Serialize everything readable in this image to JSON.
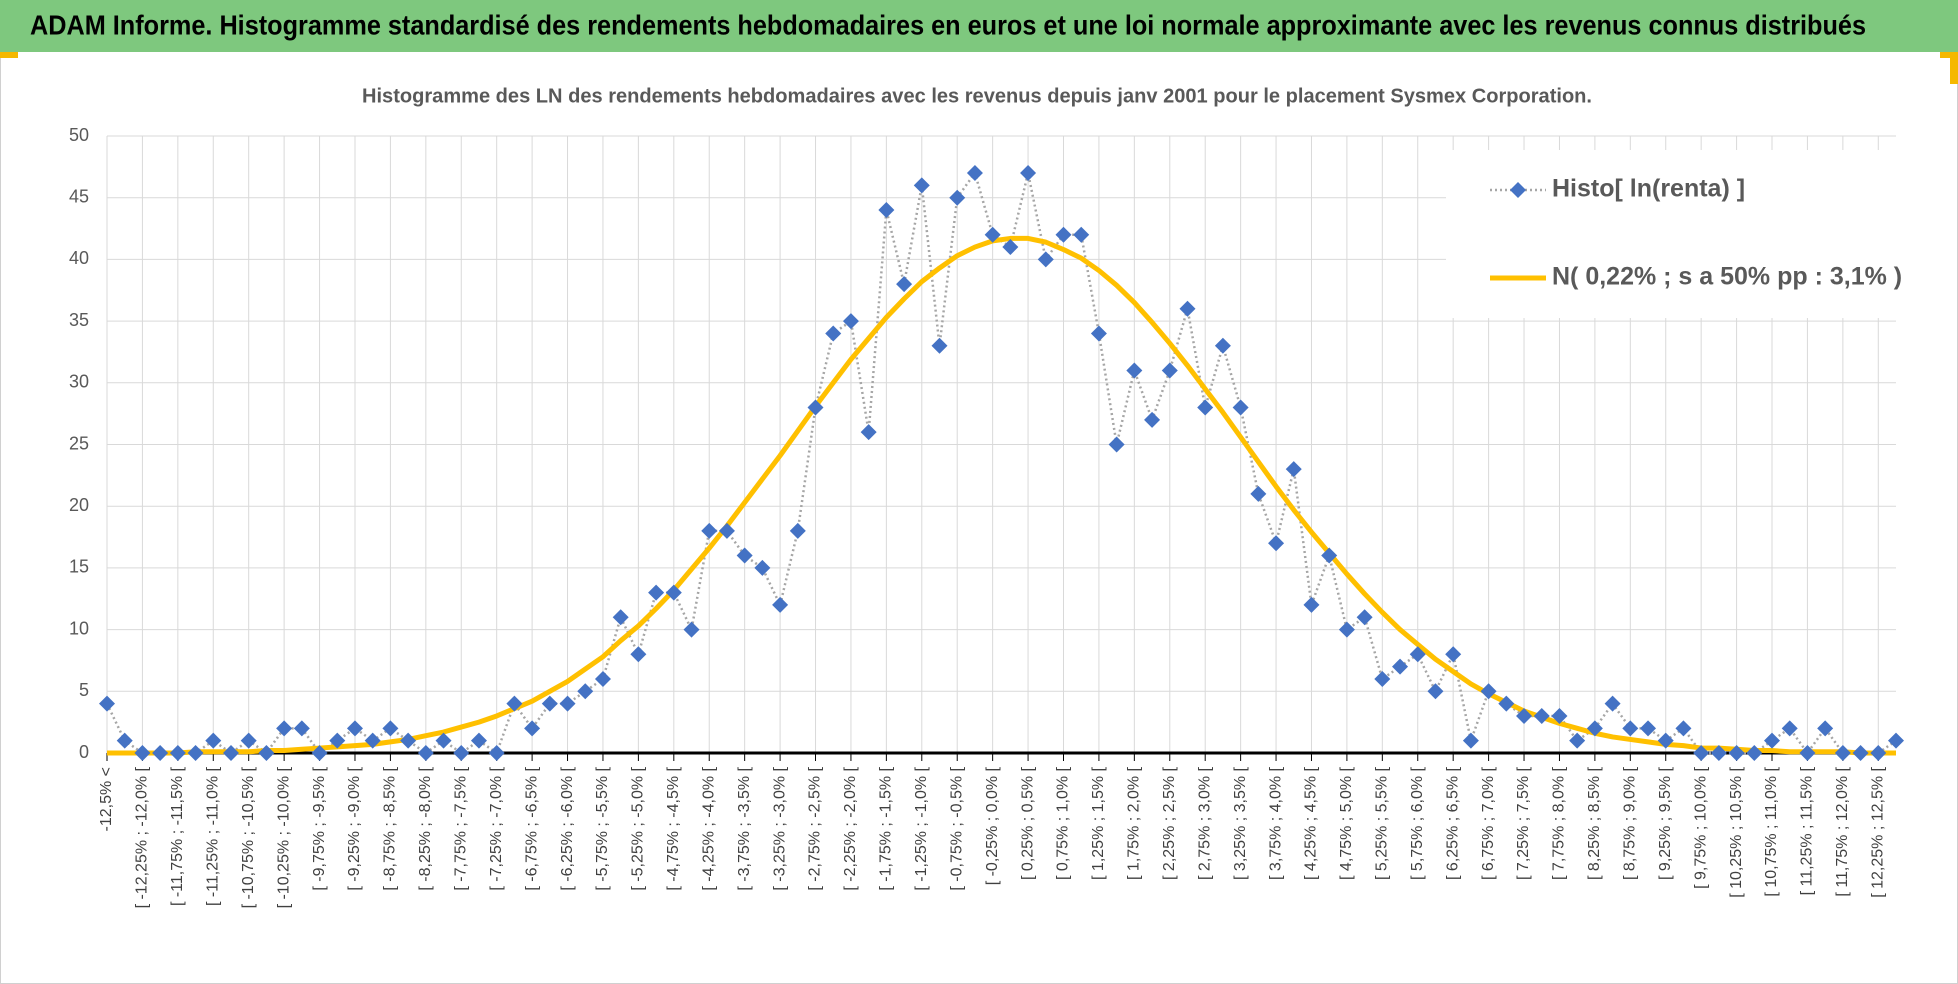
{
  "header": {
    "title": "ADAM Informe. Histogramme standardisé des rendements hebdomadaires en euros et une loi normale approximante avec les revenus connus distribués"
  },
  "chart_data": {
    "type": "line",
    "title": "Histogramme des LN des rendements hebdomadaires avec les revenus depuis janv 2001 pour le placement Sysmex Corporation.",
    "categories": [
      "-12,5% <",
      null,
      "[ -12,25% ; -12,0% [",
      null,
      "[ -11,75% ; -11,5% [",
      null,
      "[ -11,25% ; -11,0% [",
      null,
      "[ -10,75% ; -10,5% [",
      null,
      "[ -10,25% ; -10,0% [",
      null,
      "[ -9,75% ; -9,5% [",
      null,
      "[ -9,25% ; -9,0% [",
      null,
      "[ -8,75% ; -8,5% [",
      null,
      "[ -8,25% ; -8,0% [",
      null,
      "[ -7,75% ; -7,5% [",
      null,
      "[ -7,25% ; -7,0% [",
      null,
      "[ -6,75% ; -6,5% [",
      null,
      "[ -6,25% ; -6,0% [",
      null,
      "[ -5,75% ; -5,5% [",
      null,
      "[ -5,25% ; -5,0% [",
      null,
      "[ -4,75% ; -4,5% [",
      null,
      "[ -4,25% ; -4,0% [",
      null,
      "[ -3,75% ; -3,5% [",
      null,
      "[ -3,25% ; -3,0% [",
      null,
      "[ -2,75% ; -2,5% [",
      null,
      "[ -2,25% ; -2,0% [",
      null,
      "[ -1,75% ; -1,5% [",
      null,
      "[ -1,25% ; -1,0% [",
      null,
      "[ -0,75% ; -0,5% [",
      null,
      "[ -0,25% ; 0,0% [",
      null,
      "[ 0,25% ; 0,5% [",
      null,
      "[ 0,75% ; 1,0% [",
      null,
      "[ 1,25% ; 1,5% [",
      null,
      "[ 1,75% ; 2,0% [",
      null,
      "[ 2,25% ; 2,5% [",
      null,
      "[ 2,75% ; 3,0% [",
      null,
      "[ 3,25% ; 3,5% [",
      null,
      "[ 3,75% ; 4,0% [",
      null,
      "[ 4,25% ; 4,5% [",
      null,
      "[ 4,75% ; 5,0% [",
      null,
      "[ 5,25% ; 5,5% [",
      null,
      "[ 5,75% ; 6,0% [",
      null,
      "[ 6,25% ; 6,5% [",
      null,
      "[ 6,75% ; 7,0% [",
      null,
      "[ 7,25% ; 7,5% [",
      null,
      "[ 7,75% ; 8,0% [",
      null,
      "[ 8,25% ; 8,5% [",
      null,
      "[ 8,75% ; 9,0% [",
      null,
      "[ 9,25% ; 9,5% [",
      null,
      "[ 9,75% ; 10,0% [",
      null,
      "[ 10,25% ; 10,5% [",
      null,
      "[ 10,75% ; 11,0% [",
      null,
      "[ 11,25% ; 11,5% [",
      null,
      "[ 11,75% ; 12,0% [",
      null,
      "[ 12,25% ; 12,5% [",
      null
    ],
    "series": [
      {
        "name": "Histo[ ln(renta) ]",
        "color": "#4472c4",
        "line_color": "#a6a6a6",
        "line_style": "dotted",
        "marker": "diamond",
        "values": [
          4,
          1,
          0,
          0,
          0,
          0,
          1,
          0,
          1,
          0,
          2,
          2,
          0,
          1,
          2,
          1,
          2,
          1,
          0,
          1,
          0,
          1,
          0,
          4,
          2,
          4,
          4,
          5,
          6,
          11,
          8,
          13,
          13,
          10,
          18,
          18,
          16,
          15,
          12,
          18,
          28,
          34,
          35,
          26,
          44,
          38,
          46,
          33,
          45,
          47,
          42,
          41,
          47,
          40,
          42,
          42,
          34,
          25,
          31,
          27,
          31,
          36,
          28,
          33,
          28,
          21,
          17,
          23,
          12,
          16,
          10,
          11,
          6,
          7,
          8,
          5,
          8,
          1,
          5,
          4,
          3,
          3,
          3,
          1,
          2,
          4,
          2,
          2,
          1,
          2,
          0,
          0,
          0,
          0,
          1,
          2,
          0,
          2,
          0,
          0,
          0,
          1
        ]
      },
      {
        "name": "N( 0,22% ; s a 50% pp : 3,1% )",
        "color": "#ffc000",
        "line_style": "solid",
        "marker": "none",
        "values": [
          0,
          0,
          0,
          0,
          0,
          0.1,
          0.1,
          0.1,
          0.1,
          0.2,
          0.2,
          0.3,
          0.4,
          0.5,
          0.6,
          0.7,
          0.9,
          1.1,
          1.4,
          1.7,
          2.1,
          2.5,
          3.0,
          3.6,
          4.2,
          5.0,
          5.8,
          6.8,
          7.8,
          9.1,
          10.3,
          11.7,
          13.2,
          14.9,
          16.6,
          18.4,
          20.3,
          22.2,
          24.1,
          26.1,
          28.1,
          30.0,
          31.9,
          33.6,
          35.3,
          36.8,
          38.2,
          39.3,
          40.3,
          41.0,
          41.5,
          41.7,
          41.7,
          41.4,
          40.8,
          40.1,
          39.1,
          37.9,
          36.5,
          34.9,
          33.2,
          31.4,
          29.5,
          27.6,
          25.6,
          23.6,
          21.6,
          19.7,
          17.9,
          16.2,
          14.5,
          12.9,
          11.4,
          10.0,
          8.8,
          7.6,
          6.6,
          5.6,
          4.8,
          4.1,
          3.4,
          2.9,
          2.4,
          2.0,
          1.6,
          1.3,
          1.1,
          0.9,
          0.7,
          0.6,
          0.4,
          0.4,
          0.3,
          0.2,
          0.2,
          0.1,
          0.1,
          0.1,
          0.1,
          0,
          0,
          0
        ]
      }
    ],
    "ylim": [
      0,
      50
    ],
    "yticks": [
      0,
      5,
      10,
      15,
      20,
      25,
      30,
      35,
      40,
      45,
      50
    ],
    "grid": true,
    "legend": "upper right"
  }
}
